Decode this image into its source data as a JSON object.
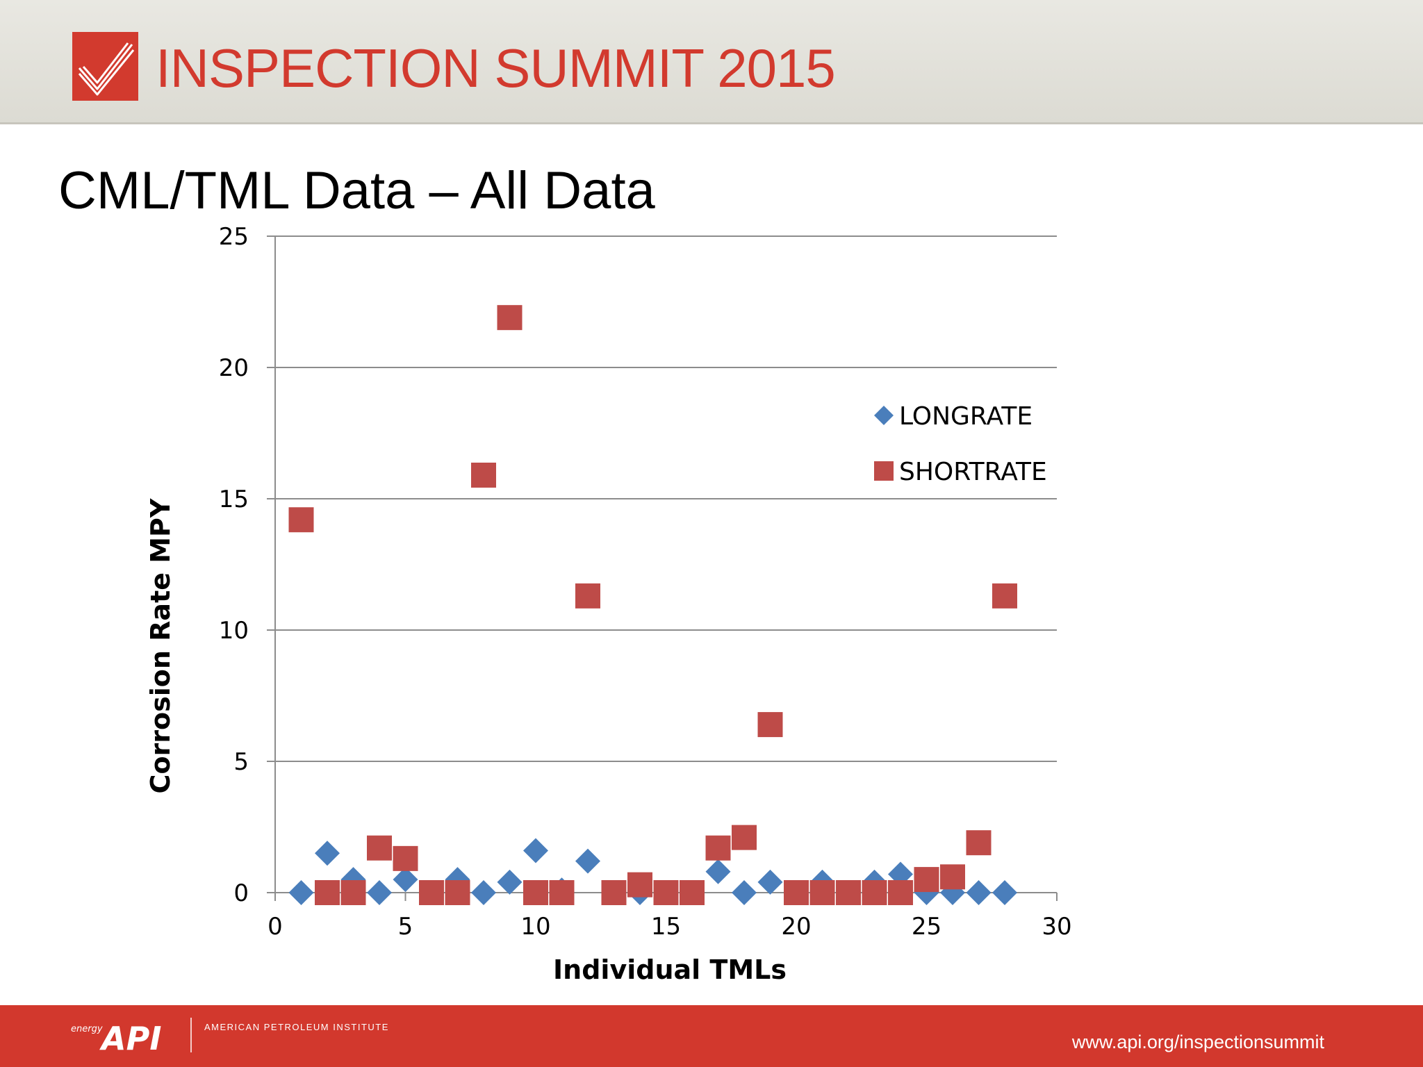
{
  "header": {
    "title": "INSPECTION SUMMIT 2015",
    "logo_icon": "checkmark-logo-icon",
    "accent_color": "#d23a2e"
  },
  "slide": {
    "title": "CML/TML Data – All Data"
  },
  "chart_data": {
    "type": "scatter",
    "title": "",
    "xlabel": "Individual TMLs",
    "ylabel": "Corrosion Rate MPY",
    "xlim": [
      0,
      30
    ],
    "ylim": [
      0,
      25
    ],
    "x_ticks": [
      0,
      5,
      10,
      15,
      20,
      25,
      30
    ],
    "y_ticks": [
      0,
      5,
      10,
      15,
      20,
      25
    ],
    "grid": "horizontal",
    "legend_position": "top-right",
    "series": [
      {
        "name": "LONGRATE",
        "marker": "diamond",
        "color": "#4a7ebb",
        "points": [
          {
            "x": 1,
            "y": 0
          },
          {
            "x": 2,
            "y": 1.5
          },
          {
            "x": 3,
            "y": 0.5
          },
          {
            "x": 4,
            "y": 0
          },
          {
            "x": 5,
            "y": 0.5
          },
          {
            "x": 6,
            "y": 0
          },
          {
            "x": 7,
            "y": 0.5
          },
          {
            "x": 8,
            "y": 0
          },
          {
            "x": 9,
            "y": 0.4
          },
          {
            "x": 10,
            "y": 1.6
          },
          {
            "x": 11,
            "y": 0.1
          },
          {
            "x": 12,
            "y": 1.2
          },
          {
            "x": 13,
            "y": 0
          },
          {
            "x": 14,
            "y": 0
          },
          {
            "x": 15,
            "y": 0
          },
          {
            "x": 16,
            "y": 0
          },
          {
            "x": 17,
            "y": 0.8
          },
          {
            "x": 18,
            "y": 0
          },
          {
            "x": 19,
            "y": 0.4
          },
          {
            "x": 20,
            "y": 0
          },
          {
            "x": 21,
            "y": 0.4
          },
          {
            "x": 22,
            "y": 0
          },
          {
            "x": 23,
            "y": 0.4
          },
          {
            "x": 24,
            "y": 0.7
          },
          {
            "x": 25,
            "y": 0
          },
          {
            "x": 26,
            "y": 0
          },
          {
            "x": 27,
            "y": 0
          },
          {
            "x": 28,
            "y": 0
          }
        ]
      },
      {
        "name": "SHORTRATE",
        "marker": "square",
        "color": "#be4b48",
        "points": [
          {
            "x": 1,
            "y": 14.2
          },
          {
            "x": 2,
            "y": 0
          },
          {
            "x": 3,
            "y": 0
          },
          {
            "x": 4,
            "y": 1.7
          },
          {
            "x": 5,
            "y": 1.3
          },
          {
            "x": 6,
            "y": 0
          },
          {
            "x": 7,
            "y": 0
          },
          {
            "x": 8,
            "y": 15.9
          },
          {
            "x": 9,
            "y": 21.9
          },
          {
            "x": 10,
            "y": 0
          },
          {
            "x": 11,
            "y": 0
          },
          {
            "x": 12,
            "y": 11.3
          },
          {
            "x": 13,
            "y": 0
          },
          {
            "x": 14,
            "y": 0.3
          },
          {
            "x": 15,
            "y": 0
          },
          {
            "x": 16,
            "y": 0
          },
          {
            "x": 17,
            "y": 1.7
          },
          {
            "x": 18,
            "y": 2.1
          },
          {
            "x": 19,
            "y": 6.4
          },
          {
            "x": 20,
            "y": 0
          },
          {
            "x": 21,
            "y": 0
          },
          {
            "x": 22,
            "y": 0
          },
          {
            "x": 23,
            "y": 0
          },
          {
            "x": 24,
            "y": 0
          },
          {
            "x": 25,
            "y": 0.5
          },
          {
            "x": 26,
            "y": 0.6
          },
          {
            "x": 27,
            "y": 1.9
          },
          {
            "x": 28,
            "y": 11.3
          }
        ]
      }
    ]
  },
  "footer": {
    "logo_small_text": "energy",
    "logo_text": "API",
    "org_name": "AMERICAN PETROLEUM INSTITUTE",
    "url": "www.api.org/inspectionsummit",
    "background_color": "#d2382d"
  }
}
